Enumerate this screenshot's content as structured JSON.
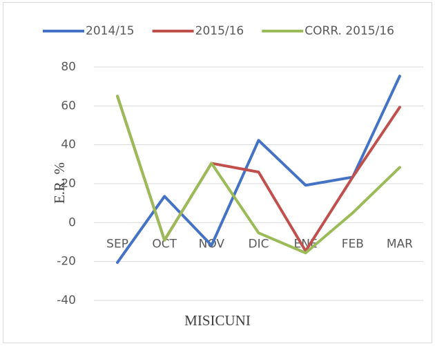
{
  "chart_data": {
    "type": "line",
    "x_label": "MISICUNI",
    "y_label": "E.R. %",
    "categories": [
      "SEP",
      "OCT",
      "NOV",
      "DIC",
      "ENE",
      "FEB",
      "MAR"
    ],
    "series": [
      {
        "name": "2014/15",
        "color": "#4472c4",
        "values": [
          -20.5,
          13.5,
          -11.7,
          42.3,
          19.2,
          23.4,
          75.3
        ]
      },
      {
        "name": "2015/16",
        "color": "#c0504d",
        "values": [
          65,
          -9,
          30.5,
          26,
          -14.6,
          23.4,
          59.3
        ]
      },
      {
        "name": "CORR. 2015/16",
        "color": "#9bbb59",
        "values": [
          65,
          -9,
          30.5,
          -5.3,
          -15.6,
          5,
          28.4
        ]
      }
    ],
    "ylim": [
      -40,
      80
    ],
    "yticks": [
      -40,
      -20,
      0,
      20,
      40,
      60,
      80
    ],
    "grid": true,
    "legend": "top"
  }
}
